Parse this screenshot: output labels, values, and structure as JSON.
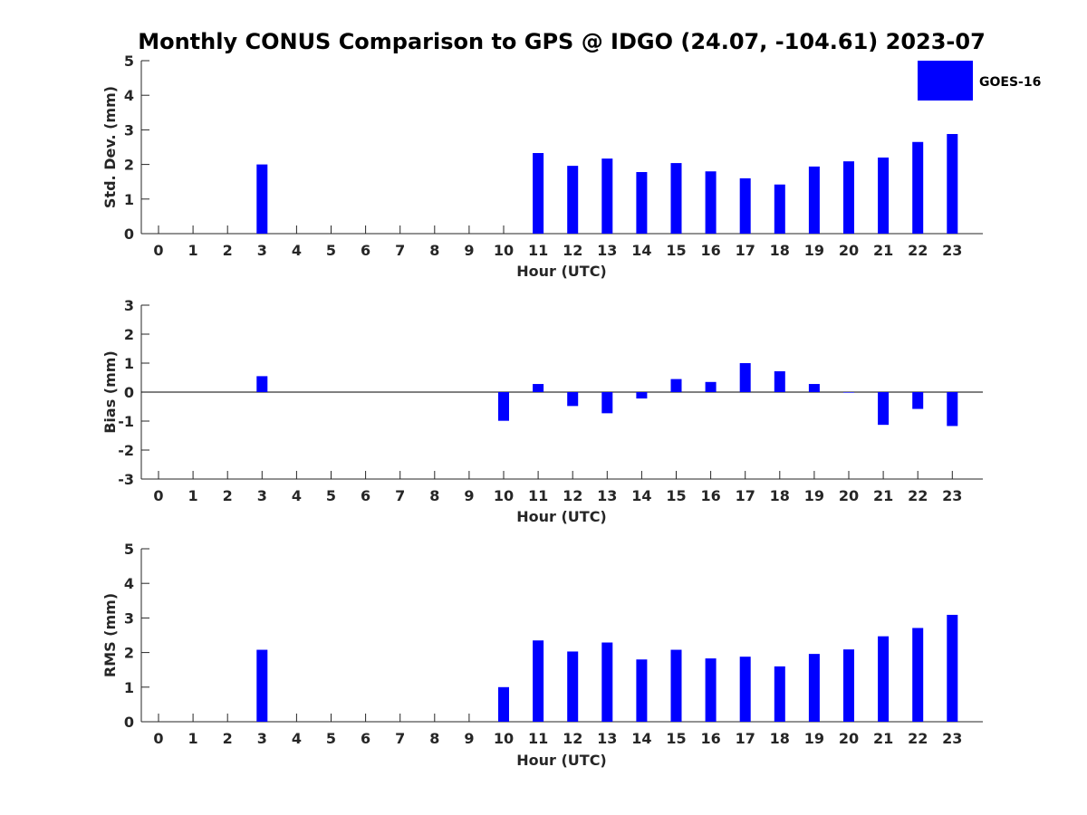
{
  "chart_data": {
    "title": "Monthly CONUS Comparison to GPS @ IDGO (24.07, -104.61) 2023-07",
    "legend": {
      "label": "GOES-16",
      "color": "#0000ff",
      "placement": "top-right"
    },
    "bar_color": "#0000ff",
    "subplots": [
      {
        "type": "bar",
        "xlabel": "Hour (UTC)",
        "ylabel": "Std. Dev. (mm)",
        "ylim": [
          0,
          5
        ],
        "yticks": [
          0,
          1,
          2,
          3,
          4,
          5
        ],
        "categories": [
          0,
          1,
          2,
          3,
          4,
          5,
          6,
          7,
          8,
          9,
          10,
          11,
          12,
          13,
          14,
          15,
          16,
          17,
          18,
          19,
          20,
          21,
          22,
          23
        ],
        "values": [
          null,
          null,
          null,
          2.0,
          null,
          null,
          null,
          null,
          null,
          null,
          0.0,
          2.33,
          1.96,
          2.17,
          1.78,
          2.04,
          1.8,
          1.6,
          1.42,
          1.94,
          2.09,
          2.2,
          2.65,
          2.88
        ]
      },
      {
        "type": "bar",
        "xlabel": "Hour (UTC)",
        "ylabel": "Bias (mm)",
        "ylim": [
          -3,
          3
        ],
        "yticks": [
          -3,
          -2,
          -1,
          0,
          1,
          2,
          3
        ],
        "categories": [
          0,
          1,
          2,
          3,
          4,
          5,
          6,
          7,
          8,
          9,
          10,
          11,
          12,
          13,
          14,
          15,
          16,
          17,
          18,
          19,
          20,
          21,
          22,
          23
        ],
        "values": [
          null,
          null,
          null,
          0.55,
          null,
          null,
          null,
          null,
          null,
          null,
          -0.99,
          0.28,
          -0.48,
          -0.73,
          -0.22,
          0.45,
          0.35,
          1.0,
          0.72,
          0.28,
          -0.02,
          -1.13,
          -0.58,
          -1.17
        ]
      },
      {
        "type": "bar",
        "xlabel": "Hour (UTC)",
        "ylabel": "RMS (mm)",
        "ylim": [
          0,
          5
        ],
        "yticks": [
          0,
          1,
          2,
          3,
          4,
          5
        ],
        "categories": [
          0,
          1,
          2,
          3,
          4,
          5,
          6,
          7,
          8,
          9,
          10,
          11,
          12,
          13,
          14,
          15,
          16,
          17,
          18,
          19,
          20,
          21,
          22,
          23
        ],
        "values": [
          null,
          null,
          null,
          2.08,
          null,
          null,
          null,
          null,
          null,
          null,
          1.0,
          2.35,
          2.03,
          2.29,
          1.8,
          2.08,
          1.83,
          1.88,
          1.6,
          1.96,
          2.09,
          2.47,
          2.71,
          3.09
        ]
      }
    ]
  }
}
